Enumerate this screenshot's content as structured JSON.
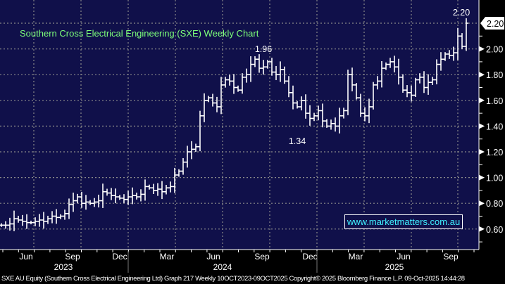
{
  "chart_data": {
    "type": "ohlc",
    "title": "Southern Cross Electrical Engineering (SXE) Weekly Chart",
    "ylabel": "",
    "xlabel": "",
    "ylim": [
      0.52,
      2.32
    ],
    "y_ticks": [
      "0.60",
      "0.80",
      "1.00",
      "1.20",
      "1.40",
      "1.60",
      "1.80",
      "2.00",
      "2.20"
    ],
    "y_tick_values": [
      0.6,
      0.8,
      1.0,
      1.2,
      1.4,
      1.6,
      1.8,
      2.0,
      2.2
    ],
    "month_labels": [
      "Jun",
      "Sep",
      "Dec",
      "Mar",
      "Jun",
      "Sep",
      "Dec",
      "Mar",
      "Jun",
      "Sep"
    ],
    "year_labels": [
      "2023",
      "2024",
      "2025"
    ],
    "last_price_label": "2.20",
    "annotations": [
      {
        "text": "2.20",
        "bar_index": 110
      },
      {
        "text": "1.96",
        "bar_index": 62
      },
      {
        "text": "1.34",
        "bar_index": 70
      }
    ],
    "closes": [
      0.63,
      0.63,
      0.64,
      0.68,
      0.67,
      0.66,
      0.65,
      0.65,
      0.66,
      0.67,
      0.66,
      0.68,
      0.7,
      0.69,
      0.7,
      0.72,
      0.79,
      0.82,
      0.85,
      0.8,
      0.81,
      0.8,
      0.81,
      0.82,
      0.89,
      0.88,
      0.86,
      0.85,
      0.84,
      0.83,
      0.85,
      0.86,
      0.85,
      0.87,
      0.93,
      0.92,
      0.9,
      0.91,
      0.89,
      0.92,
      0.93,
      1.02,
      1.05,
      1.12,
      1.2,
      1.22,
      1.24,
      1.48,
      1.6,
      1.62,
      1.58,
      1.55,
      1.72,
      1.76,
      1.75,
      1.7,
      1.68,
      1.78,
      1.8,
      1.88,
      1.92,
      1.85,
      1.86,
      1.9,
      1.82,
      1.8,
      1.84,
      1.75,
      1.66,
      1.58,
      1.55,
      1.6,
      1.5,
      1.46,
      1.48,
      1.52,
      1.44,
      1.4,
      1.42,
      1.4,
      1.48,
      1.52,
      1.8,
      1.72,
      1.62,
      1.5,
      1.48,
      1.55,
      1.72,
      1.75,
      1.85,
      1.88,
      1.9,
      1.86,
      1.78,
      1.68,
      1.66,
      1.64,
      1.76,
      1.78,
      1.7,
      1.74,
      1.76,
      1.88,
      1.92,
      1.96,
      1.95,
      1.97,
      2.1,
      2.02,
      2.2
    ],
    "grid": true,
    "legend": "none"
  },
  "watermark": "www.marketmatters.com.au",
  "footer": "SXE AU Equity (Southern Cross Electrical Engineering Ltd) Graph 217 Weekly 10OCT2023-09OCT2025  Copyright© 2025 Bloomberg Finance L.P.   09-Oct-2025 14:44:28",
  "colors": {
    "plot_bg": "#10104a",
    "bars": "#ffffff",
    "title": "#7dff7a",
    "watermark": "#3ff0ff"
  }
}
